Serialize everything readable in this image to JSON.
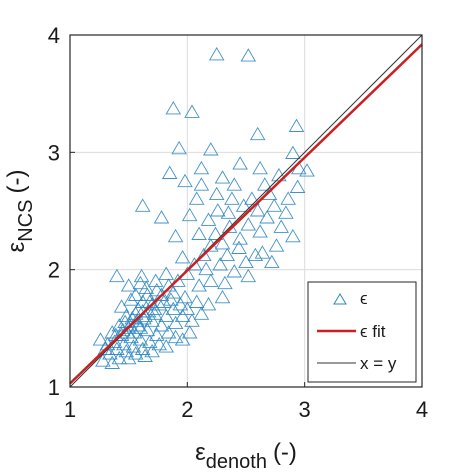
{
  "chart_data": {
    "type": "scatter",
    "xlim": [
      1,
      4
    ],
    "ylim": [
      1,
      4
    ],
    "xticks": [
      "1",
      "2",
      "3",
      "4"
    ],
    "yticks": [
      "1",
      "2",
      "3",
      "4"
    ],
    "xlabel_main": "ε",
    "xlabel_sub": "denoth",
    "xlabel_unit": "(-)",
    "ylabel_main": "ε",
    "ylabel_sub": "NCS",
    "ylabel_unit": "(-)",
    "grid": true,
    "legend_position": "bottom-right",
    "colors": {
      "points": "#2e86c1",
      "fit": "#cc1f1f",
      "identity": "#333333"
    },
    "series": [
      {
        "name": "ϵ",
        "type": "scatter",
        "marker": "triangle",
        "points": [
          [
            2.25,
            3.83
          ],
          [
            2.52,
            3.82
          ],
          [
            1.88,
            3.37
          ],
          [
            2.93,
            3.22
          ],
          [
            2.04,
            3.34
          ],
          [
            2.6,
            3.15
          ],
          [
            1.93,
            3.03
          ],
          [
            2.2,
            3.02
          ],
          [
            2.9,
            2.99
          ],
          [
            2.95,
            2.86
          ],
          [
            1.62,
            2.54
          ],
          [
            1.85,
            2.82
          ],
          [
            1.98,
            2.75
          ],
          [
            2.12,
            2.86
          ],
          [
            2.3,
            2.78
          ],
          [
            2.45,
            2.9
          ],
          [
            2.62,
            2.86
          ],
          [
            2.78,
            2.8
          ],
          [
            3.02,
            2.84
          ],
          [
            2.08,
            2.6
          ],
          [
            2.25,
            2.64
          ],
          [
            2.4,
            2.72
          ],
          [
            2.55,
            2.6
          ],
          [
            2.7,
            2.64
          ],
          [
            2.86,
            2.6
          ],
          [
            1.78,
            2.44
          ],
          [
            2.02,
            2.46
          ],
          [
            2.18,
            2.42
          ],
          [
            2.35,
            2.48
          ],
          [
            2.52,
            2.38
          ],
          [
            2.68,
            2.44
          ],
          [
            2.84,
            2.48
          ],
          [
            2.3,
            2.22
          ],
          [
            2.45,
            2.26
          ],
          [
            2.62,
            2.32
          ],
          [
            2.76,
            2.2
          ],
          [
            2.9,
            2.28
          ],
          [
            2.64,
            2.14
          ],
          [
            2.72,
            2.06
          ],
          [
            2.58,
            2.12
          ],
          [
            2.44,
            2.18
          ],
          [
            2.2,
            2.2
          ],
          [
            2.34,
            2.12
          ],
          [
            2.5,
            2.06
          ],
          [
            2.1,
            2.3
          ],
          [
            1.9,
            2.28
          ],
          [
            1.96,
            2.1
          ],
          [
            2.06,
            2.04
          ],
          [
            2.16,
            2.0
          ],
          [
            2.28,
            2.04
          ],
          [
            2.4,
            1.98
          ],
          [
            2.52,
            1.94
          ],
          [
            2.2,
            1.9
          ],
          [
            2.32,
            1.88
          ],
          [
            2.1,
            1.86
          ],
          [
            2.0,
            1.96
          ],
          [
            1.92,
            1.9
          ],
          [
            1.82,
            1.96
          ],
          [
            1.88,
            1.8
          ],
          [
            1.98,
            1.76
          ],
          [
            2.08,
            1.72
          ],
          [
            2.18,
            1.7
          ],
          [
            2.3,
            1.76
          ],
          [
            1.4,
            1.94
          ],
          [
            1.5,
            1.86
          ],
          [
            1.6,
            1.88
          ],
          [
            1.56,
            1.78
          ],
          [
            1.66,
            1.78
          ],
          [
            1.74,
            1.82
          ],
          [
            1.8,
            1.72
          ],
          [
            1.88,
            1.66
          ],
          [
            1.96,
            1.6
          ],
          [
            2.04,
            1.56
          ],
          [
            2.12,
            1.62
          ],
          [
            1.9,
            1.54
          ],
          [
            1.82,
            1.6
          ],
          [
            1.72,
            1.66
          ],
          [
            1.62,
            1.72
          ],
          [
            1.52,
            1.74
          ],
          [
            1.44,
            1.68
          ],
          [
            1.48,
            1.6
          ],
          [
            1.56,
            1.62
          ],
          [
            1.64,
            1.6
          ],
          [
            1.7,
            1.56
          ],
          [
            1.78,
            1.52
          ],
          [
            1.84,
            1.46
          ],
          [
            1.9,
            1.42
          ],
          [
            1.96,
            1.4
          ],
          [
            2.02,
            1.46
          ],
          [
            1.74,
            1.44
          ],
          [
            1.66,
            1.48
          ],
          [
            1.58,
            1.52
          ],
          [
            1.5,
            1.5
          ],
          [
            1.42,
            1.52
          ],
          [
            1.36,
            1.46
          ],
          [
            1.44,
            1.44
          ],
          [
            1.52,
            1.42
          ],
          [
            1.6,
            1.4
          ],
          [
            1.68,
            1.38
          ],
          [
            1.76,
            1.36
          ],
          [
            1.82,
            1.34
          ],
          [
            1.7,
            1.3
          ],
          [
            1.62,
            1.32
          ],
          [
            1.54,
            1.34
          ],
          [
            1.46,
            1.36
          ],
          [
            1.38,
            1.38
          ],
          [
            1.32,
            1.36
          ],
          [
            1.4,
            1.32
          ],
          [
            1.48,
            1.3
          ],
          [
            1.56,
            1.28
          ],
          [
            1.64,
            1.26
          ],
          [
            1.34,
            1.28
          ],
          [
            1.42,
            1.24
          ],
          [
            1.5,
            1.24
          ],
          [
            1.3,
            1.32
          ],
          [
            1.26,
            1.4
          ],
          [
            1.28,
            1.22
          ],
          [
            1.36,
            1.2
          ],
          [
            1.55,
            1.46
          ],
          [
            1.6,
            1.5
          ],
          [
            1.63,
            1.58
          ],
          [
            1.67,
            1.64
          ],
          [
            1.7,
            1.7
          ],
          [
            1.58,
            1.66
          ],
          [
            1.53,
            1.58
          ],
          [
            1.47,
            1.55
          ],
          [
            1.39,
            1.44
          ],
          [
            1.45,
            1.48
          ],
          [
            1.72,
            1.62
          ],
          [
            1.76,
            1.7
          ],
          [
            1.68,
            1.72
          ],
          [
            1.62,
            1.64
          ],
          [
            1.57,
            1.56
          ],
          [
            1.51,
            1.52
          ],
          [
            1.49,
            1.46
          ],
          [
            1.86,
            1.74
          ],
          [
            1.94,
            1.7
          ],
          [
            2.0,
            1.66
          ],
          [
            1.78,
            1.78
          ],
          [
            1.84,
            1.86
          ],
          [
            1.73,
            1.9
          ],
          [
            1.65,
            1.84
          ],
          [
            1.61,
            1.94
          ],
          [
            2.24,
            2.3
          ],
          [
            2.36,
            2.36
          ],
          [
            2.14,
            2.12
          ],
          [
            2.26,
            2.5
          ],
          [
            2.48,
            2.54
          ],
          [
            2.6,
            2.5
          ],
          [
            2.74,
            2.54
          ],
          [
            2.8,
            2.36
          ],
          [
            2.94,
            2.7
          ],
          [
            2.66,
            2.72
          ],
          [
            2.38,
            2.6
          ],
          [
            2.12,
            2.72
          ]
        ]
      },
      {
        "name": "ϵ fit",
        "type": "line",
        "x": [
          1,
          4
        ],
        "y": [
          1.03,
          3.92
        ]
      },
      {
        "name": "x = y",
        "type": "line",
        "x": [
          1,
          4
        ],
        "y": [
          1,
          4
        ]
      }
    ]
  }
}
